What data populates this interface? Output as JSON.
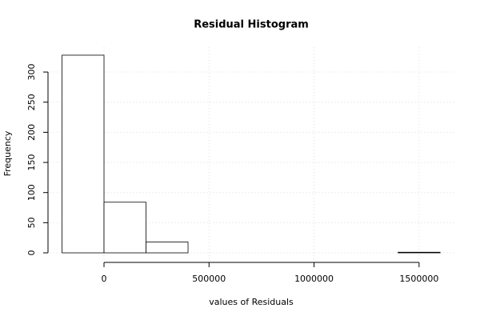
{
  "chart_data": {
    "type": "histogram",
    "title": "Residual Histogram",
    "xlabel": "values of Residuals",
    "ylabel": "Frequency",
    "bins": [
      -200000,
      0,
      200000,
      400000,
      600000,
      800000,
      1000000,
      1200000,
      1400000,
      1600000
    ],
    "values": [
      328,
      84,
      18,
      0,
      0,
      0,
      0,
      0,
      1
    ],
    "color": "#ffffff",
    "edgecolor": "#000000",
    "xlim": [
      -272000,
      1672000
    ],
    "ylim": [
      -13.1,
      341.1
    ],
    "xticks": [
      0,
      500000,
      1000000,
      1500000
    ],
    "yticks": [
      0,
      50,
      100,
      150,
      200,
      250,
      300
    ],
    "grid": true
  }
}
